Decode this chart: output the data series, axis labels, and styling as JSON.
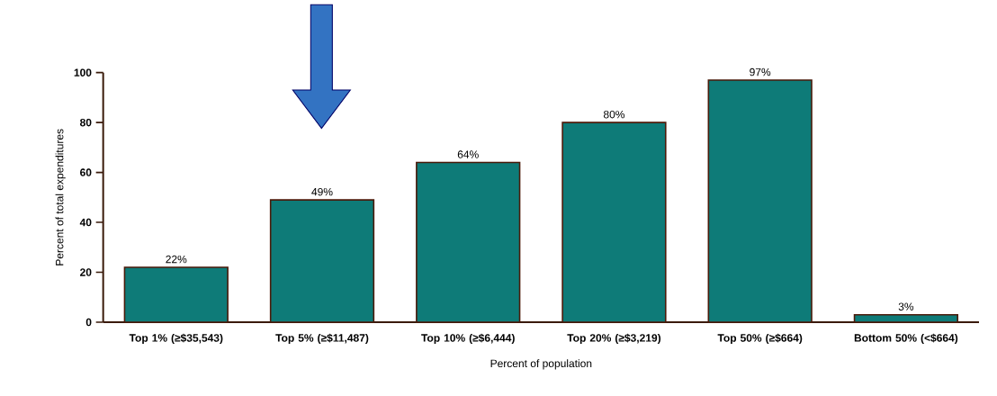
{
  "chart_data": {
    "type": "bar",
    "xlabel": "Percent of population",
    "ylabel": "Percent of total expenditures",
    "categories": [
      "Top 1% (≥$35,543)",
      "Top 5% (≥$11,487)",
      "Top 10% (≥$6,444)",
      "Top 20% (≥$3,219)",
      "Top 50% (≥$664)",
      "Bottom 50% (<$664)"
    ],
    "values": [
      22,
      49,
      64,
      80,
      97,
      3
    ],
    "value_labels": [
      "22%",
      "49%",
      "64%",
      "80%",
      "97%",
      "3%"
    ],
    "color": "#0e7b78",
    "ylim": [
      0,
      100
    ],
    "yticks": [
      0,
      20,
      40,
      60,
      80,
      100
    ],
    "grid": false
  }
}
